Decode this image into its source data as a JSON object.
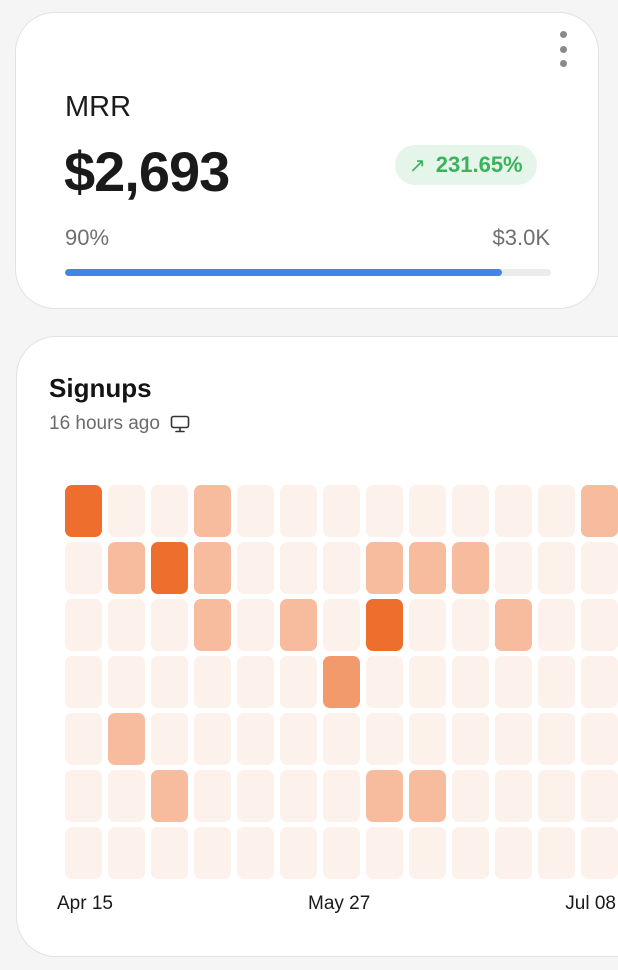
{
  "mrr_card": {
    "label": "MRR",
    "value": "$2,693",
    "change": "231.65%",
    "change_icon": "arrow-up-right-icon",
    "progress_label": "90%",
    "progress_percent": 90,
    "target": "$3.0K",
    "colors": {
      "progress": "#3f86e8",
      "badge_text": "#3bb35c",
      "badge_bg": "#e5f5ea"
    }
  },
  "signups_card": {
    "title": "Signups",
    "subtitle": "16 hours ago",
    "subtitle_icon": "monitor-icon",
    "x_labels": [
      "Apr 15",
      "May 27",
      "Jul 08"
    ]
  },
  "chart_data": {
    "type": "heatmap",
    "rows": 7,
    "level_colors": [
      "#fdf1eb",
      "#f7bb9d",
      "#f39a6d",
      "#ee6f2d"
    ],
    "values": [
      [
        3,
        0,
        0,
        1,
        0,
        0,
        0,
        0,
        0,
        0,
        0,
        0,
        1
      ],
      [
        0,
        1,
        3,
        1,
        0,
        0,
        0,
        1,
        1,
        1,
        0,
        0,
        0
      ],
      [
        0,
        0,
        0,
        1,
        0,
        1,
        0,
        3,
        0,
        0,
        1,
        0,
        0
      ],
      [
        0,
        0,
        0,
        0,
        0,
        0,
        2,
        0,
        0,
        0,
        0,
        0,
        0
      ],
      [
        0,
        1,
        0,
        0,
        0,
        0,
        0,
        0,
        0,
        0,
        0,
        0,
        0
      ],
      [
        0,
        0,
        1,
        0,
        0,
        0,
        0,
        1,
        1,
        0,
        0,
        0,
        0
      ],
      [
        0,
        0,
        0,
        0,
        0,
        0,
        0,
        0,
        0,
        0,
        0,
        0,
        0
      ]
    ],
    "x_tick_labels": [
      "Apr 15",
      "May 27",
      "Jul 08"
    ]
  }
}
